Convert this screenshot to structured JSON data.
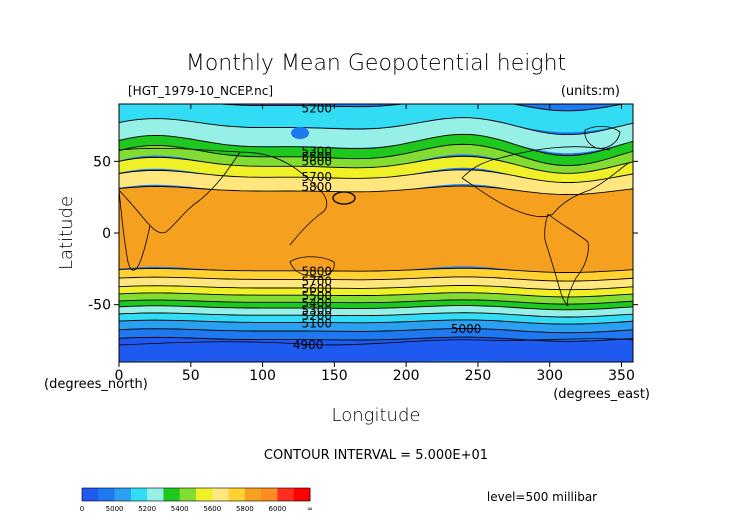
{
  "chart_data": {
    "type": "heatmap",
    "title": "Monthly Mean Geopotential height",
    "file_label": "[HGT_1979-10_NCEP.nc]",
    "units_label": "(units:m)",
    "xlabel": "Longitude",
    "ylabel": "Latitude",
    "x_units": "(degrees_east)",
    "y_units": "(degrees_north)",
    "xlim": [
      0,
      358
    ],
    "ylim": [
      -90,
      90
    ],
    "x_ticks": [
      0,
      50,
      100,
      150,
      200,
      250,
      300,
      350
    ],
    "y_ticks": [
      -50,
      0,
      50
    ],
    "contour_interval_text": "CONTOUR INTERVAL = 5.000E+01",
    "level_text": "level=500 millibar",
    "contour_labels": [
      {
        "lon": 128,
        "lat": 87,
        "text": "5200"
      },
      {
        "lon": 128,
        "lat": 57,
        "text": "5300"
      },
      {
        "lon": 128,
        "lat": 53,
        "text": "5500"
      },
      {
        "lon": 128,
        "lat": 50,
        "text": "5600"
      },
      {
        "lon": 128,
        "lat": 39,
        "text": "5700"
      },
      {
        "lon": 128,
        "lat": 32,
        "text": "5800"
      },
      {
        "lon": 128,
        "lat": -27,
        "text": "5800"
      },
      {
        "lon": 128,
        "lat": -34,
        "text": "5700"
      },
      {
        "lon": 128,
        "lat": -39,
        "text": "5600"
      },
      {
        "lon": 128,
        "lat": -44,
        "text": "5500"
      },
      {
        "lon": 128,
        "lat": -49,
        "text": "5400"
      },
      {
        "lon": 128,
        "lat": -54,
        "text": "5300"
      },
      {
        "lon": 128,
        "lat": -58,
        "text": "5200"
      },
      {
        "lon": 128,
        "lat": -63,
        "text": "5100"
      },
      {
        "lon": 232,
        "lat": -67,
        "text": "5000"
      },
      {
        "lon": 122,
        "lat": -78,
        "text": "4900"
      }
    ],
    "colorbar": {
      "labels": [
        "0",
        "5000",
        "5200",
        "5400",
        "5600",
        "5800",
        "6000",
        "∞"
      ],
      "colors": [
        "#1e5af0",
        "#1e78f0",
        "#2aa0f0",
        "#32dcf5",
        "#96f0e6",
        "#1ec81e",
        "#82dc32",
        "#f0f028",
        "#ffe67d",
        "#ffd232",
        "#f5a01e",
        "#ff8c1e",
        "#ff2d1e",
        "#ff0000"
      ]
    },
    "bands": [
      {
        "lat_south": 75,
        "lat_north": 90,
        "color": "#32dcf5",
        "amp": 3
      },
      {
        "lat_south": 62,
        "lat_north": 75,
        "color": "#96f0e6",
        "amp": 4
      },
      {
        "lat_south": 55,
        "lat_north": 62,
        "color": "#1ec81e",
        "amp": 5
      },
      {
        "lat_south": 48,
        "lat_north": 55,
        "color": "#82dc32",
        "amp": 5
      },
      {
        "lat_south": 40,
        "lat_north": 48,
        "color": "#f0f028",
        "amp": 4
      },
      {
        "lat_south": 30,
        "lat_north": 40,
        "color": "#ffe67d",
        "amp": 3
      },
      {
        "lat_south": -26,
        "lat_north": 30,
        "color": "#f5a01e",
        "amp": 2
      },
      {
        "lat_south": -32,
        "lat_north": -26,
        "color": "#ffd232",
        "amp": 1
      },
      {
        "lat_south": -38,
        "lat_north": -32,
        "color": "#ffe67d",
        "amp": 1
      },
      {
        "lat_south": -43,
        "lat_north": -38,
        "color": "#f0f028",
        "amp": 1
      },
      {
        "lat_south": -48,
        "lat_north": -43,
        "color": "#82dc32",
        "amp": 1
      },
      {
        "lat_south": -52,
        "lat_north": -48,
        "color": "#1ec81e",
        "amp": 1
      },
      {
        "lat_south": -57,
        "lat_north": -52,
        "color": "#96f0e6",
        "amp": 1
      },
      {
        "lat_south": -62,
        "lat_north": -57,
        "color": "#32dcf5",
        "amp": 1
      },
      {
        "lat_south": -68,
        "lat_north": -62,
        "color": "#2aa0f0",
        "amp": 1
      },
      {
        "lat_south": -74,
        "lat_north": -68,
        "color": "#1e78f0",
        "amp": 1
      },
      {
        "lat_south": -90,
        "lat_north": -74,
        "color": "#1e5af0",
        "amp": 1
      }
    ]
  }
}
